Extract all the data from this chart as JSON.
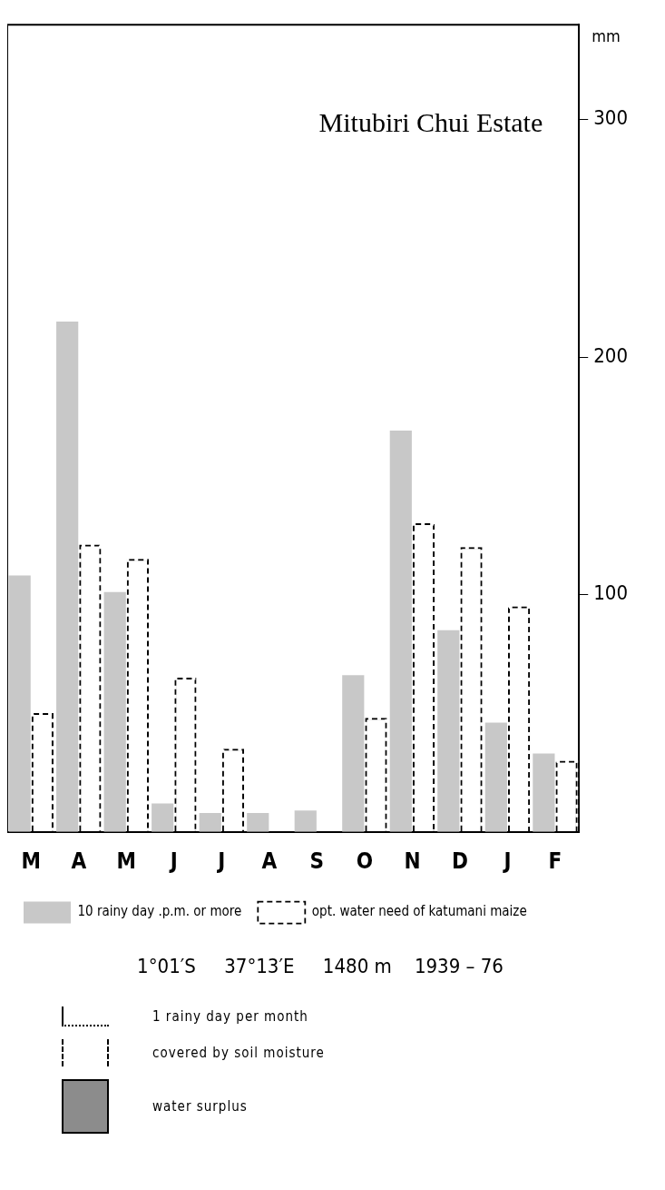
{
  "chart_data": {
    "type": "bar",
    "title": "Mitubiri Chui Estate",
    "subtitle": "1°01′S     37°13′E     1480 m    1939 – 76",
    "ylabel": "mm",
    "categories": [
      "M",
      "A",
      "M",
      "J",
      "J",
      "A",
      "S",
      "O",
      "N",
      "D",
      "J",
      "F"
    ],
    "series": [
      {
        "name": "10 rainy day .p.m. or more",
        "color": "#c8c8c8",
        "line_style": "solid",
        "values": [
          108,
          215,
          101,
          12,
          8,
          8,
          9,
          66,
          169,
          85,
          46,
          33
        ]
      },
      {
        "name": "opt. water need of katumani maize",
        "color": "#000000",
        "type": "bar",
        "line_style": "dashed",
        "values": [
          50,
          121,
          115,
          65,
          35,
          null,
          null,
          48,
          130,
          120,
          95,
          30
        ]
      }
    ],
    "ylim": [
      0,
      340
    ],
    "yticks": [
      100,
      200,
      300
    ],
    "grid": false,
    "legend": "bottom",
    "annotations": [
      "1 rainy day per month",
      "covered by soil moisture",
      "water surplus"
    ]
  }
}
